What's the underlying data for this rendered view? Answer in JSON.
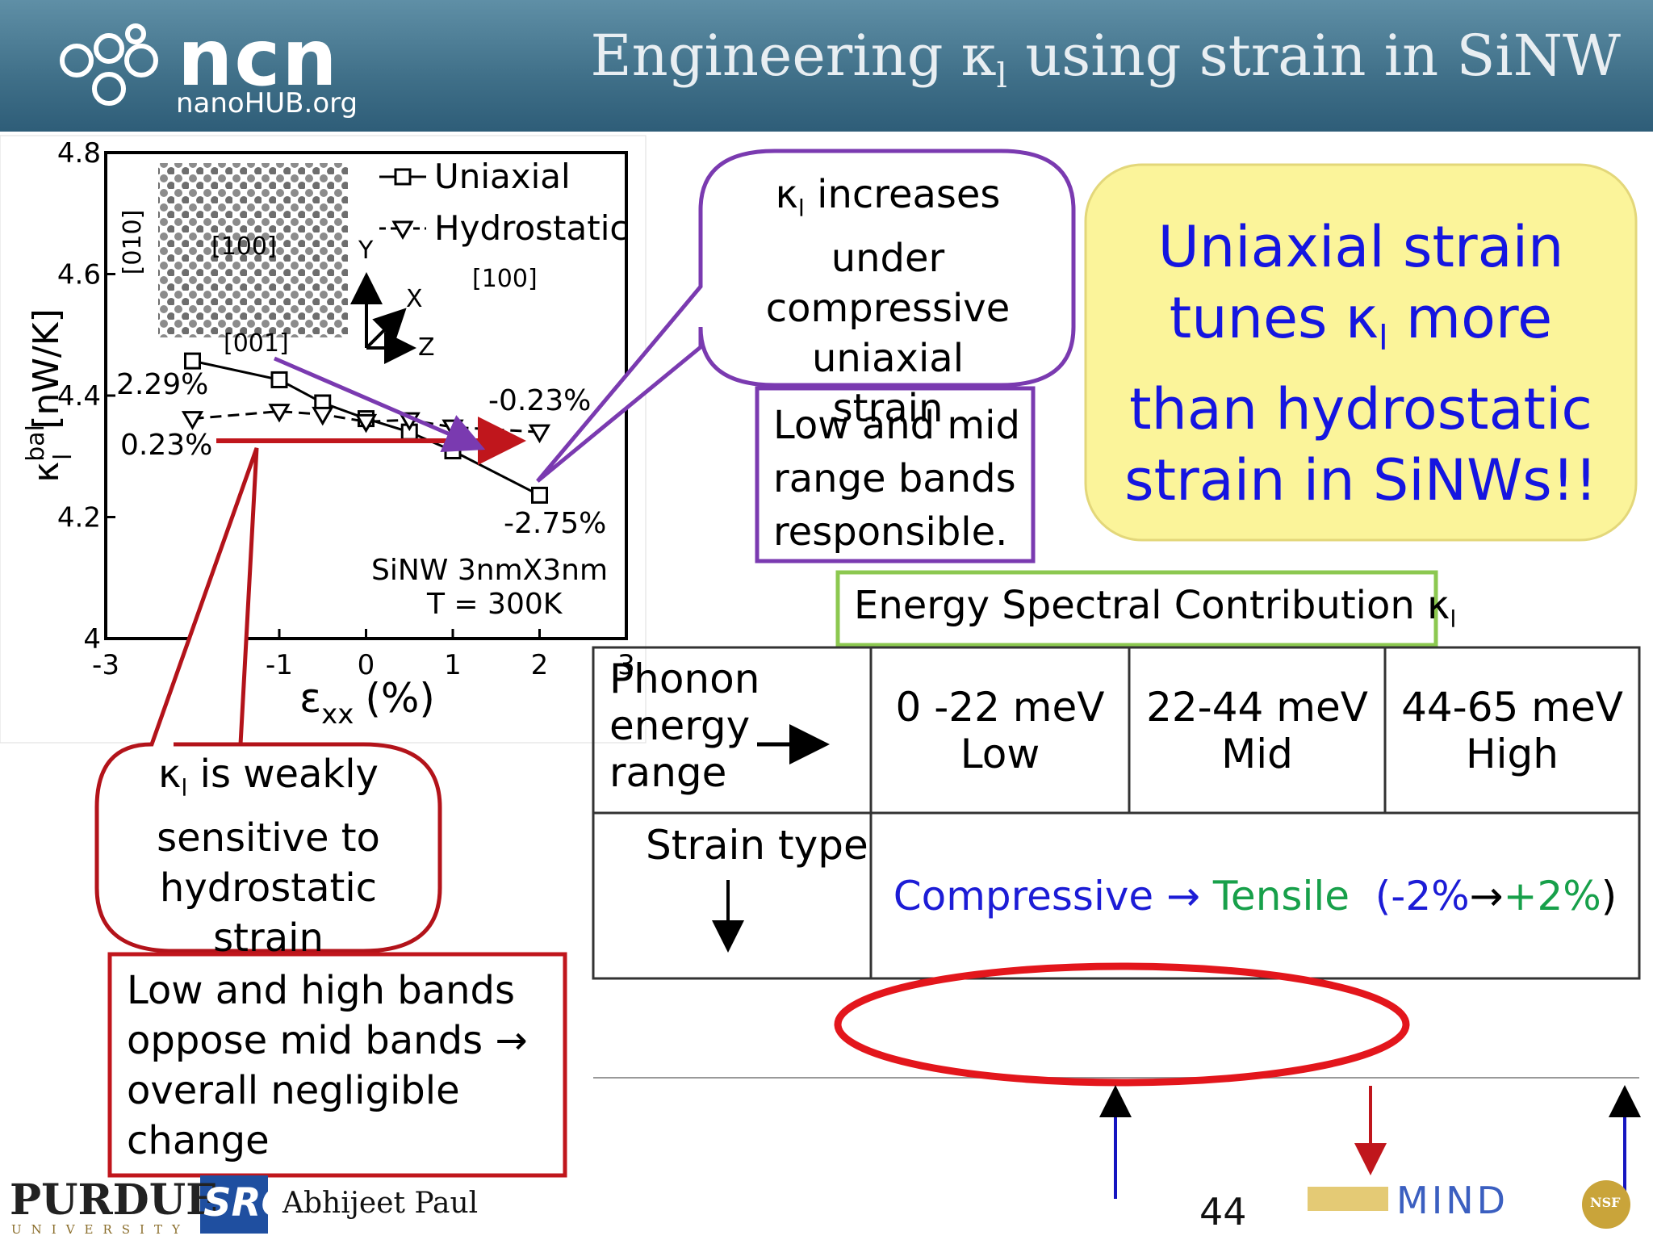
{
  "header": {
    "title": {
      "pre": "Engineering κ",
      "sub": "l",
      "post": " using strain in SiNW"
    },
    "logo": "ncn",
    "logo_sub": "nanoHUB.org"
  },
  "chart_data": {
    "type": "line",
    "xlabel": {
      "symbol": "ε",
      "sub": "xx",
      "unit": "(%)"
    },
    "ylabel": {
      "symbol": "κ",
      "sup": "bal",
      "sub": "l",
      "unit": "[nW/K]"
    },
    "x": [
      -2,
      -1,
      -0.5,
      0,
      0.5,
      1,
      2
    ],
    "series": [
      {
        "name": "Uniaxial",
        "color": "#000000",
        "marker": "square",
        "dash": false,
        "values": [
          4.457,
          4.426,
          4.388,
          4.362,
          4.34,
          4.309,
          4.236
        ]
      },
      {
        "name": "Hydrostatic",
        "color": "#000000",
        "marker": "triangle-down",
        "dash": true,
        "values": [
          4.362,
          4.374,
          4.369,
          4.357,
          4.36,
          4.348,
          4.34
        ]
      }
    ],
    "xlim": [
      -3,
      3
    ],
    "xticks": [
      -3,
      -2,
      -1,
      0,
      1,
      2,
      3
    ],
    "ylim": [
      4,
      4.8
    ],
    "yticks": [
      4,
      4.2,
      4.4,
      4.6,
      4.8
    ],
    "annotations": [
      "[010]",
      "[100]",
      "[001]",
      "Y",
      "X",
      "Z",
      "[100]",
      "2.29%",
      "0.23%",
      "-0.23%",
      "-2.75%",
      "SiNW 3nmX3nm",
      "T = 300K"
    ]
  },
  "callouts": {
    "uniaxial": {
      "symbol": "κ",
      "sub": "l",
      "text": " increases under compressive uniaxial strain"
    },
    "uniaxial_note": "Low and mid range bands responsible.",
    "summary": {
      "pre": "Uniaxial strain tunes κ",
      "sub": "l",
      "post": " more than hydrostatic  strain in SiNWs!!"
    },
    "hydrostatic": {
      "symbol": "κ",
      "sub": "l",
      "text": " is weakly sensitive to hydrostatic strain"
    },
    "hydrostatic_note": "Low and high bands oppose mid bands → overall negligible change"
  },
  "table": {
    "caption": {
      "pre": "Energy Spectral Contribution κ",
      "sub": "l"
    },
    "rows": [
      [
        "Phonon energy range",
        "0 -22 meV\nLow",
        "22-44 meV\nMid",
        "44-65 meV\nHigh"
      ],
      [
        "Strain type",
        [
          {
            "text": "Compressive → ",
            "color": "#1c1cd6"
          },
          {
            "text": "Tensile  ",
            "color": "#17a04a"
          },
          {
            "text": "(-2%",
            "color": "#1c1cd6"
          },
          {
            "text": "→",
            "color": "#000000"
          },
          {
            "text": "+2%",
            "color": "#17a04a"
          },
          {
            "text": ")",
            "color": "#000000"
          }
        ]
      ]
    ]
  },
  "footer": {
    "university": "PURDUE",
    "university_sub": "UNIVERSITY",
    "sponsor": "SRC",
    "author": "Abhijeet Paul",
    "page": "44",
    "partner": "MIND",
    "seal": "NSF"
  }
}
